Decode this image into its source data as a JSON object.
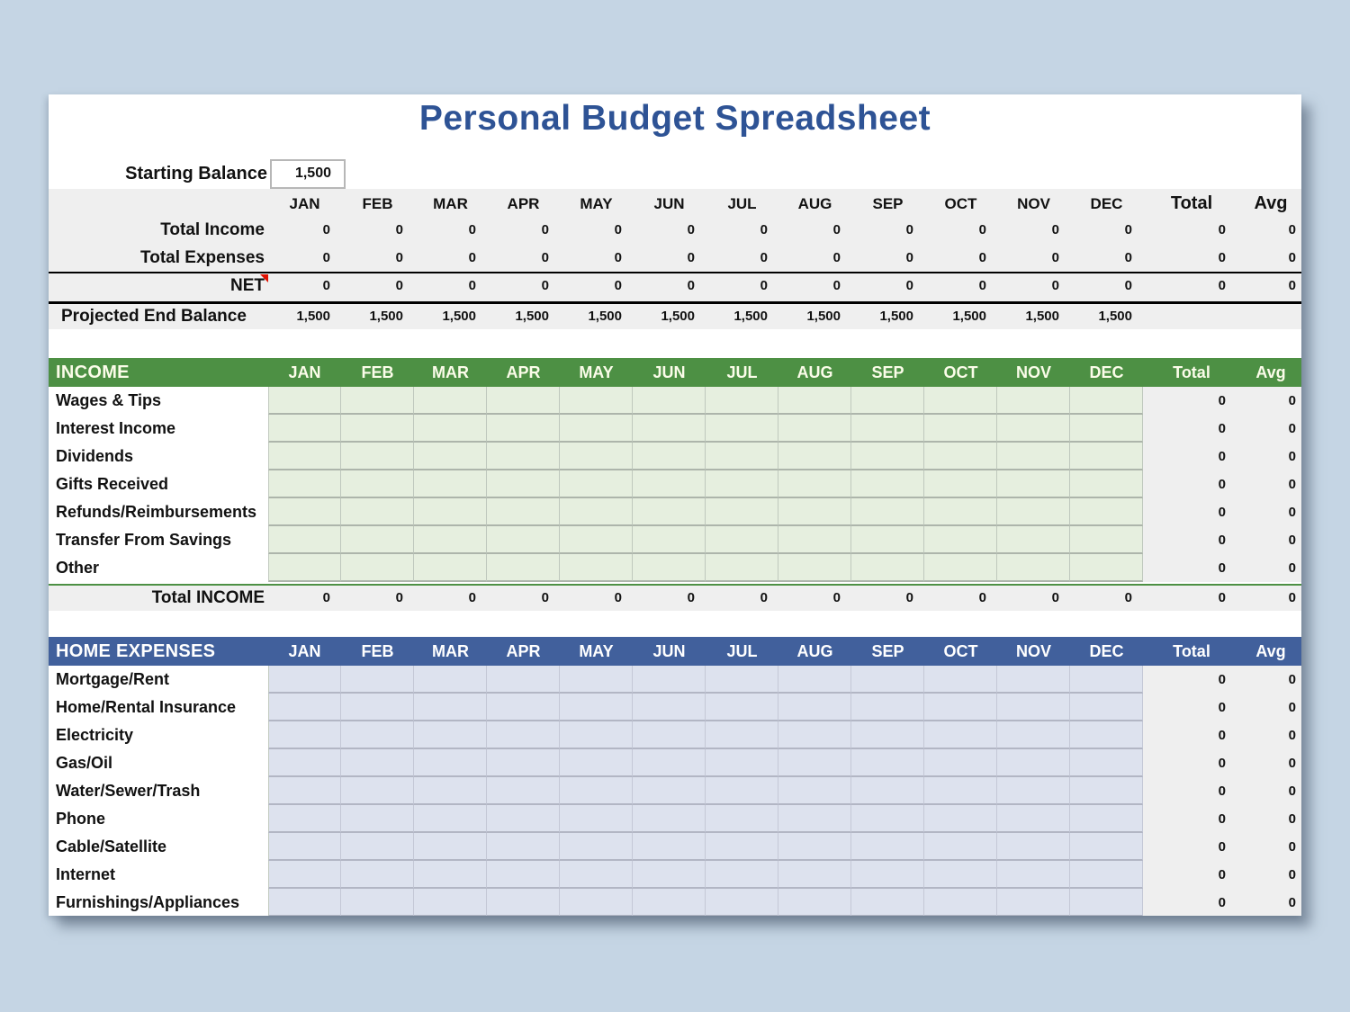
{
  "title": "Personal Budget Spreadsheet",
  "months": [
    "JAN",
    "FEB",
    "MAR",
    "APR",
    "MAY",
    "JUN",
    "JUL",
    "AUG",
    "SEP",
    "OCT",
    "NOV",
    "DEC"
  ],
  "total_label": "Total",
  "avg_label": "Avg",
  "starting_balance": {
    "label": "Starting Balance",
    "value": "1,500"
  },
  "summary": {
    "rows": [
      {
        "label": "Total Income",
        "values": [
          "0",
          "0",
          "0",
          "0",
          "0",
          "0",
          "0",
          "0",
          "0",
          "0",
          "0",
          "0"
        ],
        "total": "0",
        "avg": "0",
        "note_marker": false
      },
      {
        "label": "Total Expenses",
        "values": [
          "0",
          "0",
          "0",
          "0",
          "0",
          "0",
          "0",
          "0",
          "0",
          "0",
          "0",
          "0"
        ],
        "total": "0",
        "avg": "0",
        "note_marker": false
      },
      {
        "label": "NET",
        "values": [
          "0",
          "0",
          "0",
          "0",
          "0",
          "0",
          "0",
          "0",
          "0",
          "0",
          "0",
          "0"
        ],
        "total": "0",
        "avg": "0",
        "note_marker": true
      }
    ]
  },
  "projected": {
    "label": "Projected End Balance",
    "values": [
      "1,500",
      "1,500",
      "1,500",
      "1,500",
      "1,500",
      "1,500",
      "1,500",
      "1,500",
      "1,500",
      "1,500",
      "1,500",
      "1,500"
    ]
  },
  "income": {
    "header": "INCOME",
    "rows": [
      {
        "label": "Wages & Tips",
        "total": "0",
        "avg": "0"
      },
      {
        "label": "Interest Income",
        "total": "0",
        "avg": "0"
      },
      {
        "label": "Dividends",
        "total": "0",
        "avg": "0"
      },
      {
        "label": "Gifts Received",
        "total": "0",
        "avg": "0"
      },
      {
        "label": "Refunds/Reimbursements",
        "total": "0",
        "avg": "0"
      },
      {
        "label": "Transfer From Savings",
        "total": "0",
        "avg": "0"
      },
      {
        "label": "Other",
        "total": "0",
        "avg": "0"
      }
    ],
    "total_row": {
      "label": "Total INCOME",
      "values": [
        "0",
        "0",
        "0",
        "0",
        "0",
        "0",
        "0",
        "0",
        "0",
        "0",
        "0",
        "0"
      ],
      "total": "0",
      "avg": "0"
    }
  },
  "expenses": {
    "header": "HOME EXPENSES",
    "rows": [
      {
        "label": "Mortgage/Rent",
        "total": "0",
        "avg": "0"
      },
      {
        "label": "Home/Rental Insurance",
        "total": "0",
        "avg": "0"
      },
      {
        "label": "Electricity",
        "total": "0",
        "avg": "0"
      },
      {
        "label": "Gas/Oil",
        "total": "0",
        "avg": "0"
      },
      {
        "label": "Water/Sewer/Trash",
        "total": "0",
        "avg": "0"
      },
      {
        "label": "Phone",
        "total": "0",
        "avg": "0"
      },
      {
        "label": "Cable/Satellite",
        "total": "0",
        "avg": "0"
      },
      {
        "label": "Internet",
        "total": "0",
        "avg": "0"
      },
      {
        "label": "Furnishings/Appliances",
        "total": "0",
        "avg": "0"
      }
    ]
  },
  "colors": {
    "page_bg": "#c5d5e4",
    "title": "#2e5395",
    "band": "#efefef",
    "green": "#4d9044",
    "green_cell": "#e6efdf",
    "blue": "#41609c",
    "blue_cell": "#dde2ee",
    "note_red": "#e01000"
  }
}
